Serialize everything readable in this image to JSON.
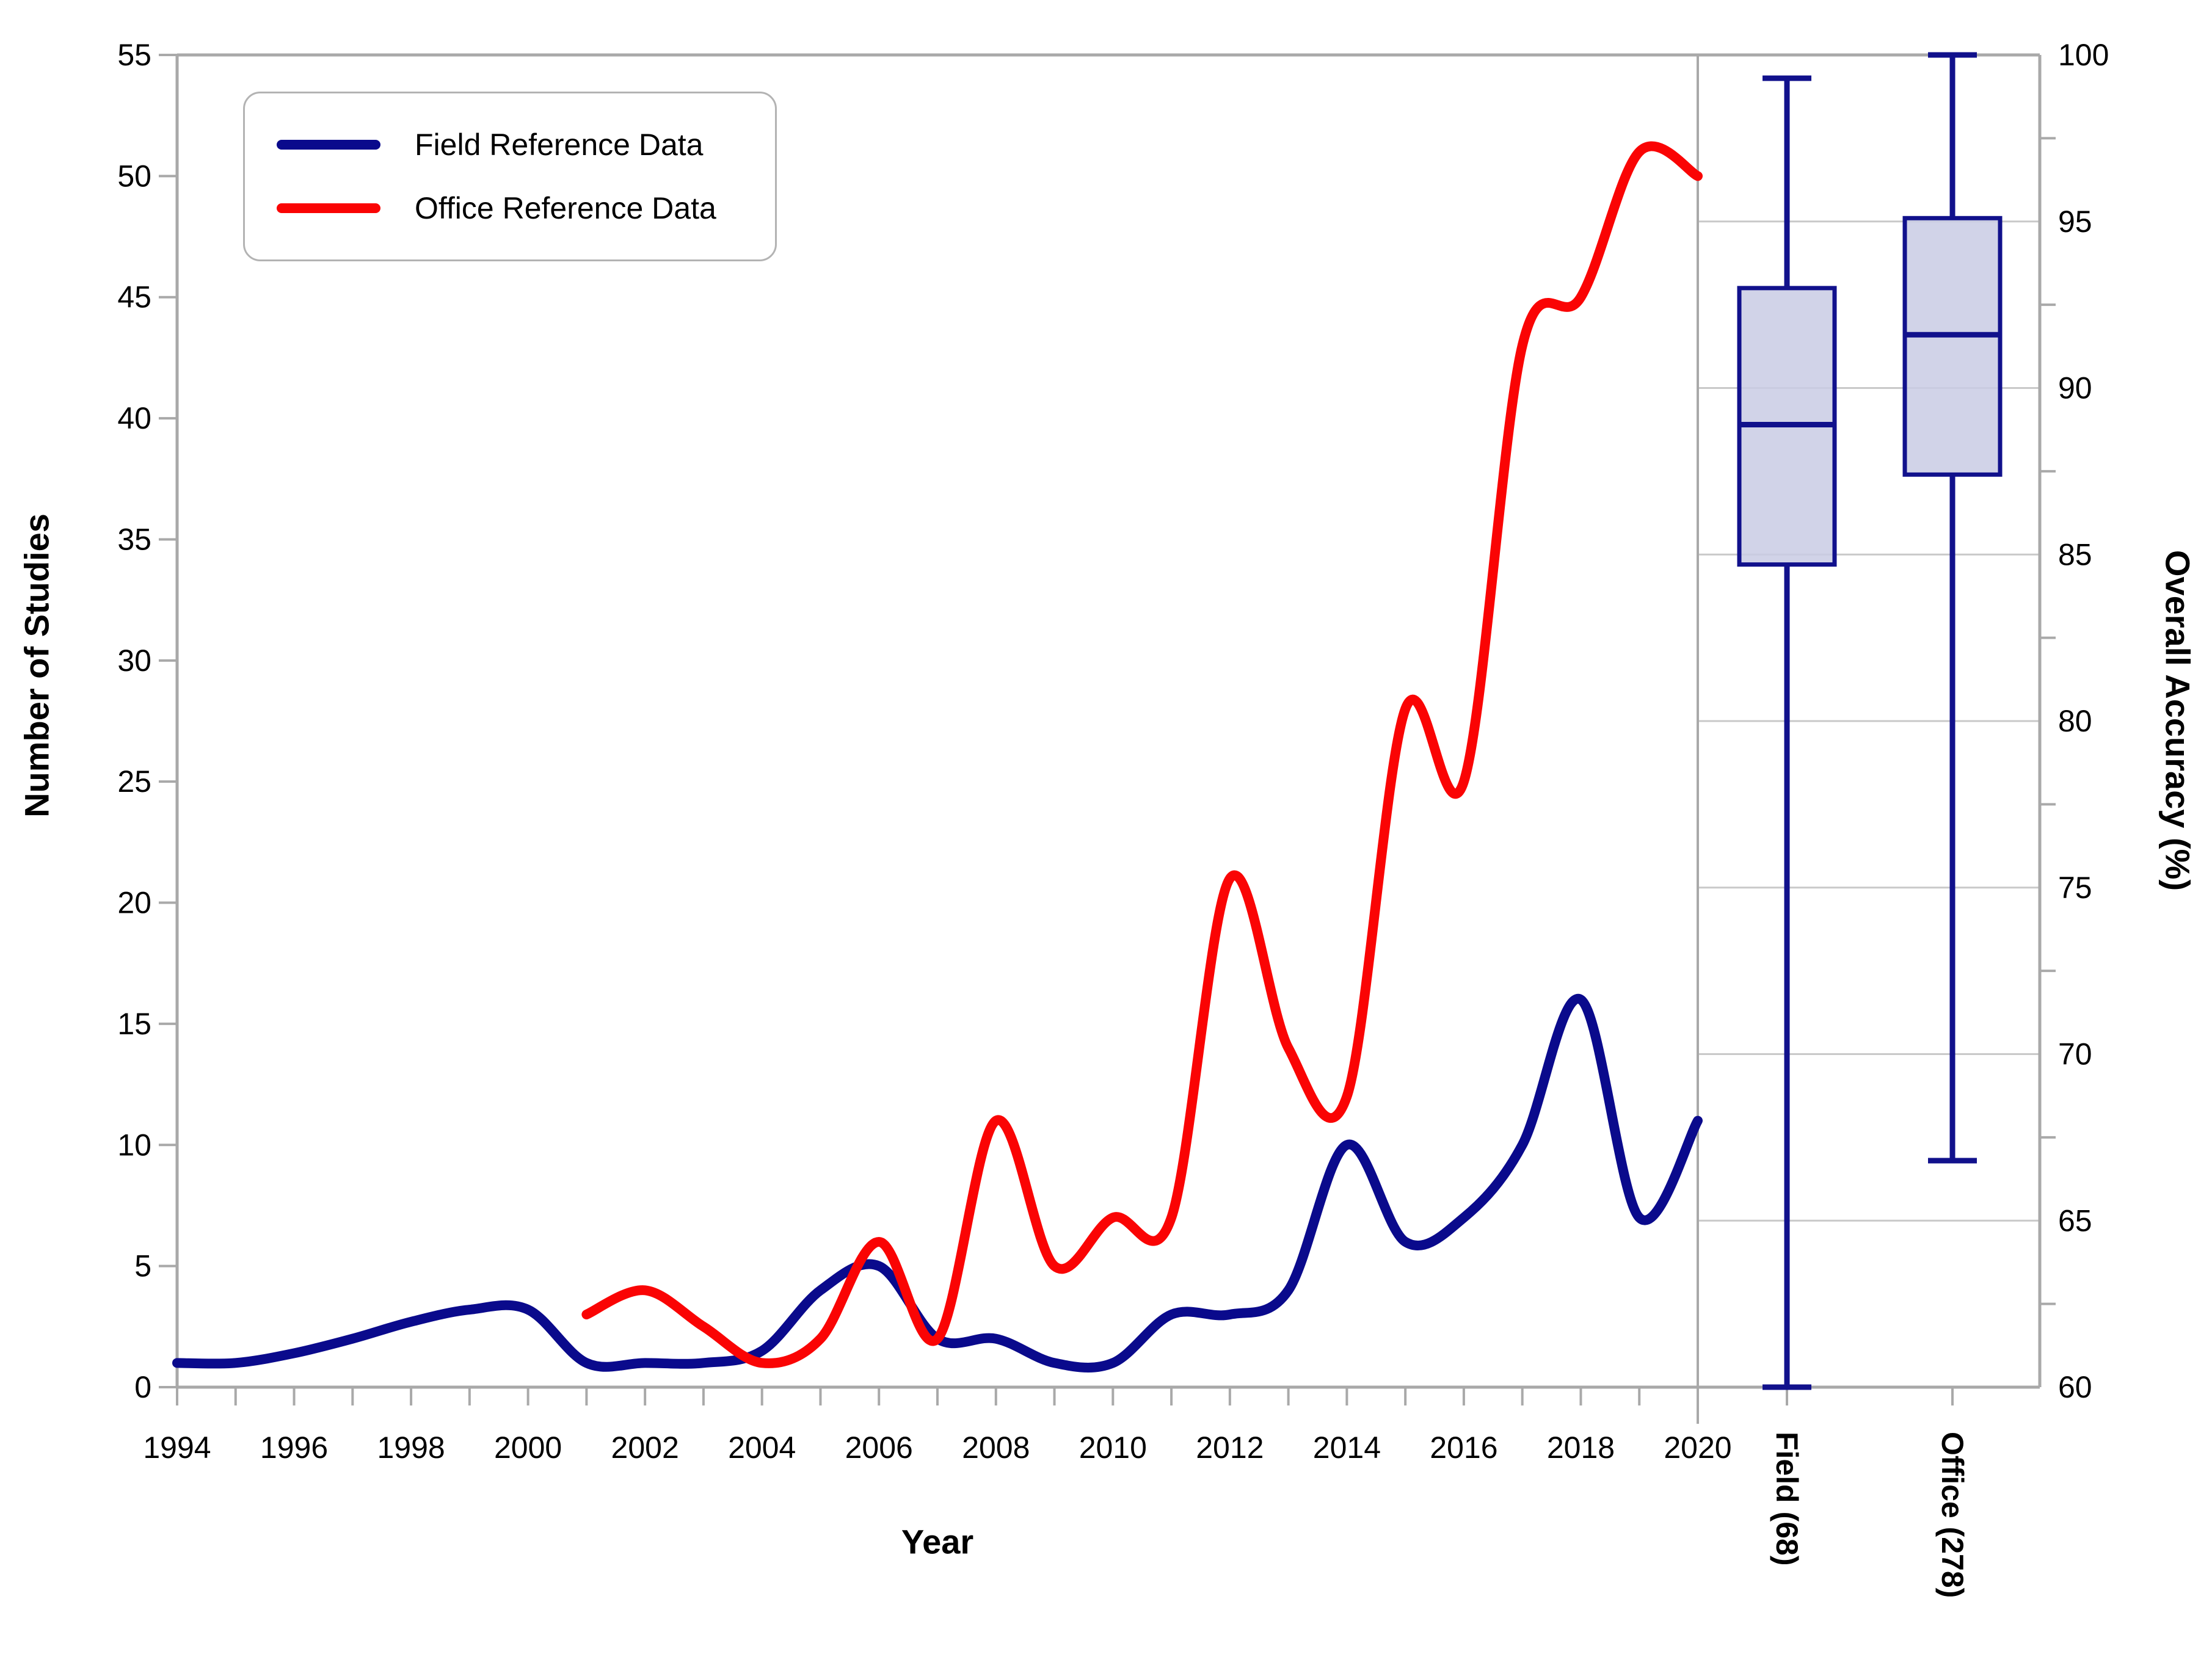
{
  "figure": {
    "background": "#ffffff",
    "axis_line_color": "#a9a9a9",
    "gridline_color": "#c9c9c9",
    "text_color": "#000000"
  },
  "legend": {
    "items": [
      {
        "label": "Field Reference Data",
        "color": "#0a0a8c"
      },
      {
        "label": "Office Reference Data",
        "color": "#fa0404"
      }
    ]
  },
  "axes": {
    "left": {
      "title": "Number of Studies",
      "tick_labels": [
        "0",
        "5",
        "10",
        "15",
        "20",
        "25",
        "30",
        "35",
        "40",
        "45",
        "50",
        "55"
      ],
      "tick_values": [
        0,
        5,
        10,
        15,
        20,
        25,
        30,
        35,
        40,
        45,
        50,
        55
      ]
    },
    "bottom": {
      "title": "Year",
      "labeled_tick_labels": [
        "1994",
        "1996",
        "1998",
        "2000",
        "2002",
        "2004",
        "2006",
        "2008",
        "2010",
        "2012",
        "2014",
        "2016",
        "2018",
        "2020"
      ],
      "labeled_tick_values": [
        1994,
        1996,
        1998,
        2000,
        2002,
        2004,
        2006,
        2008,
        2010,
        2012,
        2014,
        2016,
        2018,
        2020
      ],
      "minor_tick_values": [
        1994,
        1995,
        1996,
        1997,
        1998,
        1999,
        2000,
        2001,
        2002,
        2003,
        2004,
        2005,
        2006,
        2007,
        2008,
        2009,
        2010,
        2011,
        2012,
        2013,
        2014,
        2015,
        2016,
        2017,
        2018,
        2019,
        2020
      ]
    },
    "right": {
      "title": "Overall Accuracy (%)",
      "tick_labels": [
        "60",
        "65",
        "70",
        "75",
        "80",
        "85",
        "90",
        "95",
        "100"
      ],
      "tick_values": [
        60,
        65,
        70,
        75,
        80,
        85,
        90,
        95,
        100
      ],
      "minor_tick_values": [
        62.5,
        67.5,
        72.5,
        77.5,
        82.5,
        87.5,
        92.5,
        97.5
      ],
      "gridline_values": [
        65,
        70,
        75,
        80,
        85,
        90,
        95
      ]
    }
  },
  "chart_data": [
    {
      "type": "line",
      "title": "",
      "xlabel": "Year",
      "ylabel": "Number of Studies",
      "xlim": [
        1994,
        2020
      ],
      "ylim": [
        0,
        55
      ],
      "grid": false,
      "legend_position": "top-left",
      "line_width": 16,
      "series": [
        {
          "name": "Field Reference Data",
          "color": "#0a0a8c",
          "x": [
            1994,
            1995,
            1996,
            1997,
            1998,
            1999,
            2000,
            2001,
            2002,
            2003,
            2004,
            2005,
            2006,
            2007,
            2008,
            2009,
            2010,
            2011,
            2012,
            2013,
            2014,
            2015,
            2016,
            2017,
            2018,
            2019,
            2020
          ],
          "values": [
            1,
            1,
            1.4,
            2,
            2.7,
            3.2,
            3.2,
            1,
            1,
            1,
            1.5,
            4,
            5,
            2,
            2,
            1,
            1,
            3,
            3,
            4,
            10,
            6,
            7,
            10,
            16,
            7,
            11
          ]
        },
        {
          "name": "Office Reference Data",
          "color": "#fa0404",
          "x": [
            2001,
            2002,
            2003,
            2004,
            2005,
            2006,
            2007,
            2008,
            2009,
            2010,
            2011,
            2012,
            2013,
            2014,
            2015,
            2016,
            2017,
            2018,
            2019,
            2020
          ],
          "values": [
            3,
            4,
            2.5,
            1,
            2,
            6,
            2,
            11,
            5,
            7,
            7,
            21,
            14,
            12,
            28,
            25,
            43,
            45,
            51,
            50
          ]
        }
      ]
    },
    {
      "type": "boxplot",
      "ylabel": "Overall Accuracy (%)",
      "ylim": [
        60,
        100
      ],
      "grid": true,
      "box_fill": "#c9cbe4",
      "box_fill_opacity": 0.85,
      "box_border": "#11118c",
      "whisker_color": "#11118c",
      "boxes": [
        {
          "label": "Field (68)",
          "whisker_low": 60,
          "q1": 84.7,
          "median": 88.9,
          "q3": 93.0,
          "whisker_high": 99.3
        },
        {
          "label": "Office (278)",
          "whisker_low": 66.8,
          "q1": 87.4,
          "median": 91.6,
          "q3": 95.1,
          "whisker_high": 100
        }
      ]
    }
  ]
}
